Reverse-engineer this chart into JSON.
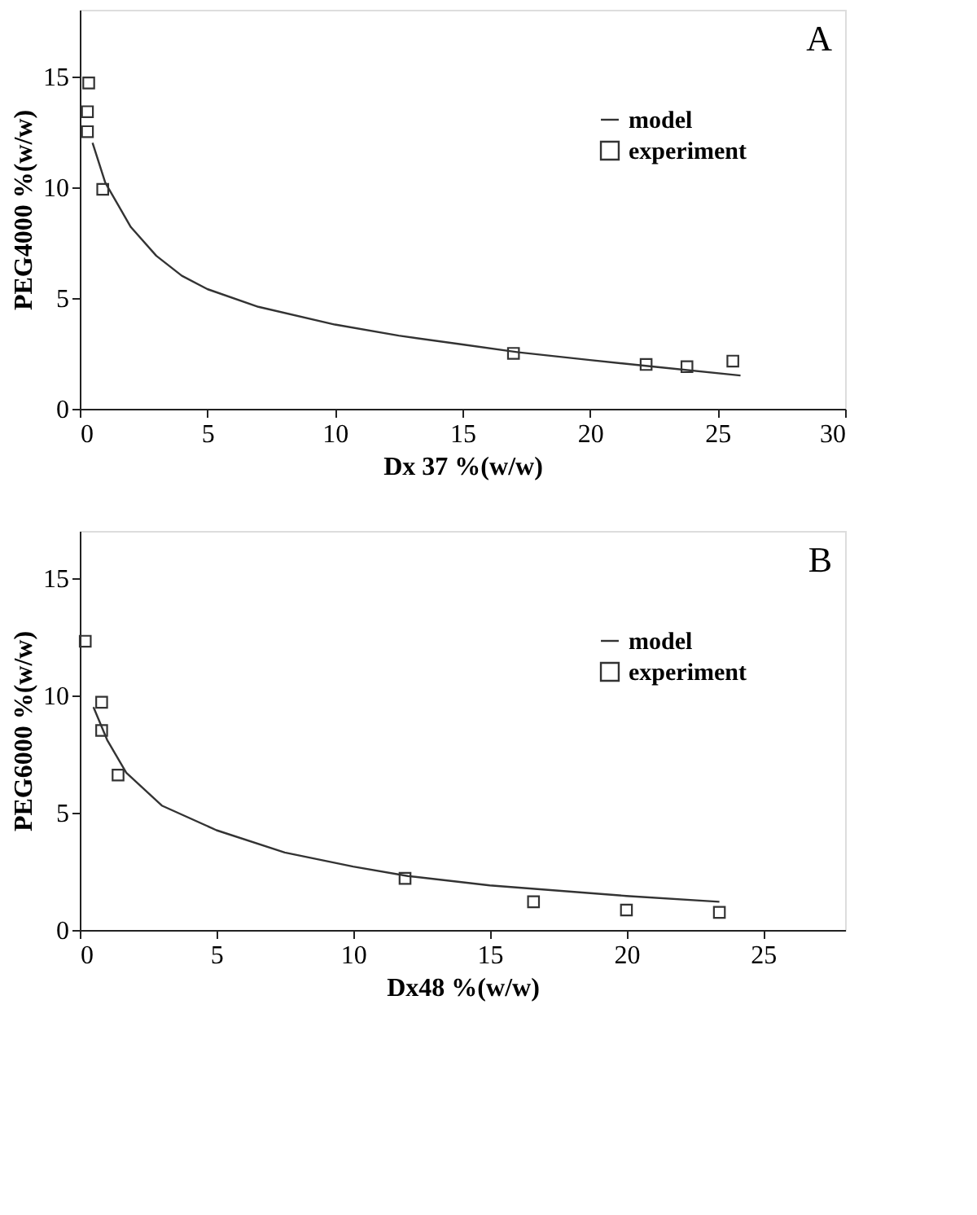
{
  "chart_data": [
    {
      "type": "scatter",
      "xlabel": "Dx 37  %(w/w)",
      "ylabel": "PEG4000  %(w/w)",
      "annotations": [
        "A"
      ],
      "xlim": [
        0,
        30
      ],
      "ylim": [
        0,
        18
      ],
      "xticks": [
        0,
        5,
        10,
        15,
        20,
        25,
        30
      ],
      "yticks": [
        0,
        5,
        10,
        15
      ],
      "grid": false,
      "legend": "top right",
      "series": [
        {
          "name": "model",
          "type": "line",
          "color": "#333333",
          "line_style": "solid",
          "marker": "none",
          "x": [
            0.5,
            1,
            2,
            3,
            4,
            5,
            7,
            10,
            12.5,
            15,
            17.2,
            20,
            22.5,
            25.9
          ],
          "values": [
            12.0,
            10.2,
            8.2,
            6.9,
            6.0,
            5.4,
            4.6,
            3.8,
            3.3,
            2.9,
            2.55,
            2.2,
            1.9,
            1.5
          ]
        },
        {
          "name": "experiment",
          "type": "scatter",
          "color": "#333333",
          "marker": "square",
          "x": [
            0.35,
            0.3,
            0.3,
            0.9,
            17.0,
            22.2,
            23.8,
            25.6
          ],
          "values": [
            14.7,
            13.4,
            12.5,
            9.9,
            2.5,
            2.0,
            1.9,
            2.15
          ]
        }
      ]
    },
    {
      "type": "scatter",
      "xlabel": "Dx48  %(w/w)",
      "ylabel": "PEG6000  %(w/w)",
      "annotations": [
        "B"
      ],
      "xlim": [
        0,
        28
      ],
      "ylim": [
        0,
        17
      ],
      "xticks": [
        0,
        5,
        10,
        15,
        20,
        25
      ],
      "yticks": [
        0,
        5,
        10,
        15
      ],
      "grid": false,
      "legend": "top right",
      "series": [
        {
          "name": "model",
          "type": "line",
          "color": "#333333",
          "line_style": "solid",
          "marker": "none",
          "x": [
            0.5,
            1,
            1.7,
            3,
            5,
            7.5,
            10,
            12,
            15,
            20,
            23.4
          ],
          "values": [
            9.5,
            8.1,
            6.7,
            5.3,
            4.25,
            3.3,
            2.7,
            2.3,
            1.9,
            1.45,
            1.2
          ]
        },
        {
          "name": "experiment",
          "type": "scatter",
          "color": "#333333",
          "marker": "square",
          "x": [
            0.2,
            0.8,
            0.8,
            1.4,
            11.9,
            16.6,
            20.0,
            23.4
          ],
          "values": [
            12.3,
            9.7,
            8.5,
            6.6,
            2.2,
            1.2,
            0.85,
            0.75
          ]
        }
      ]
    }
  ]
}
